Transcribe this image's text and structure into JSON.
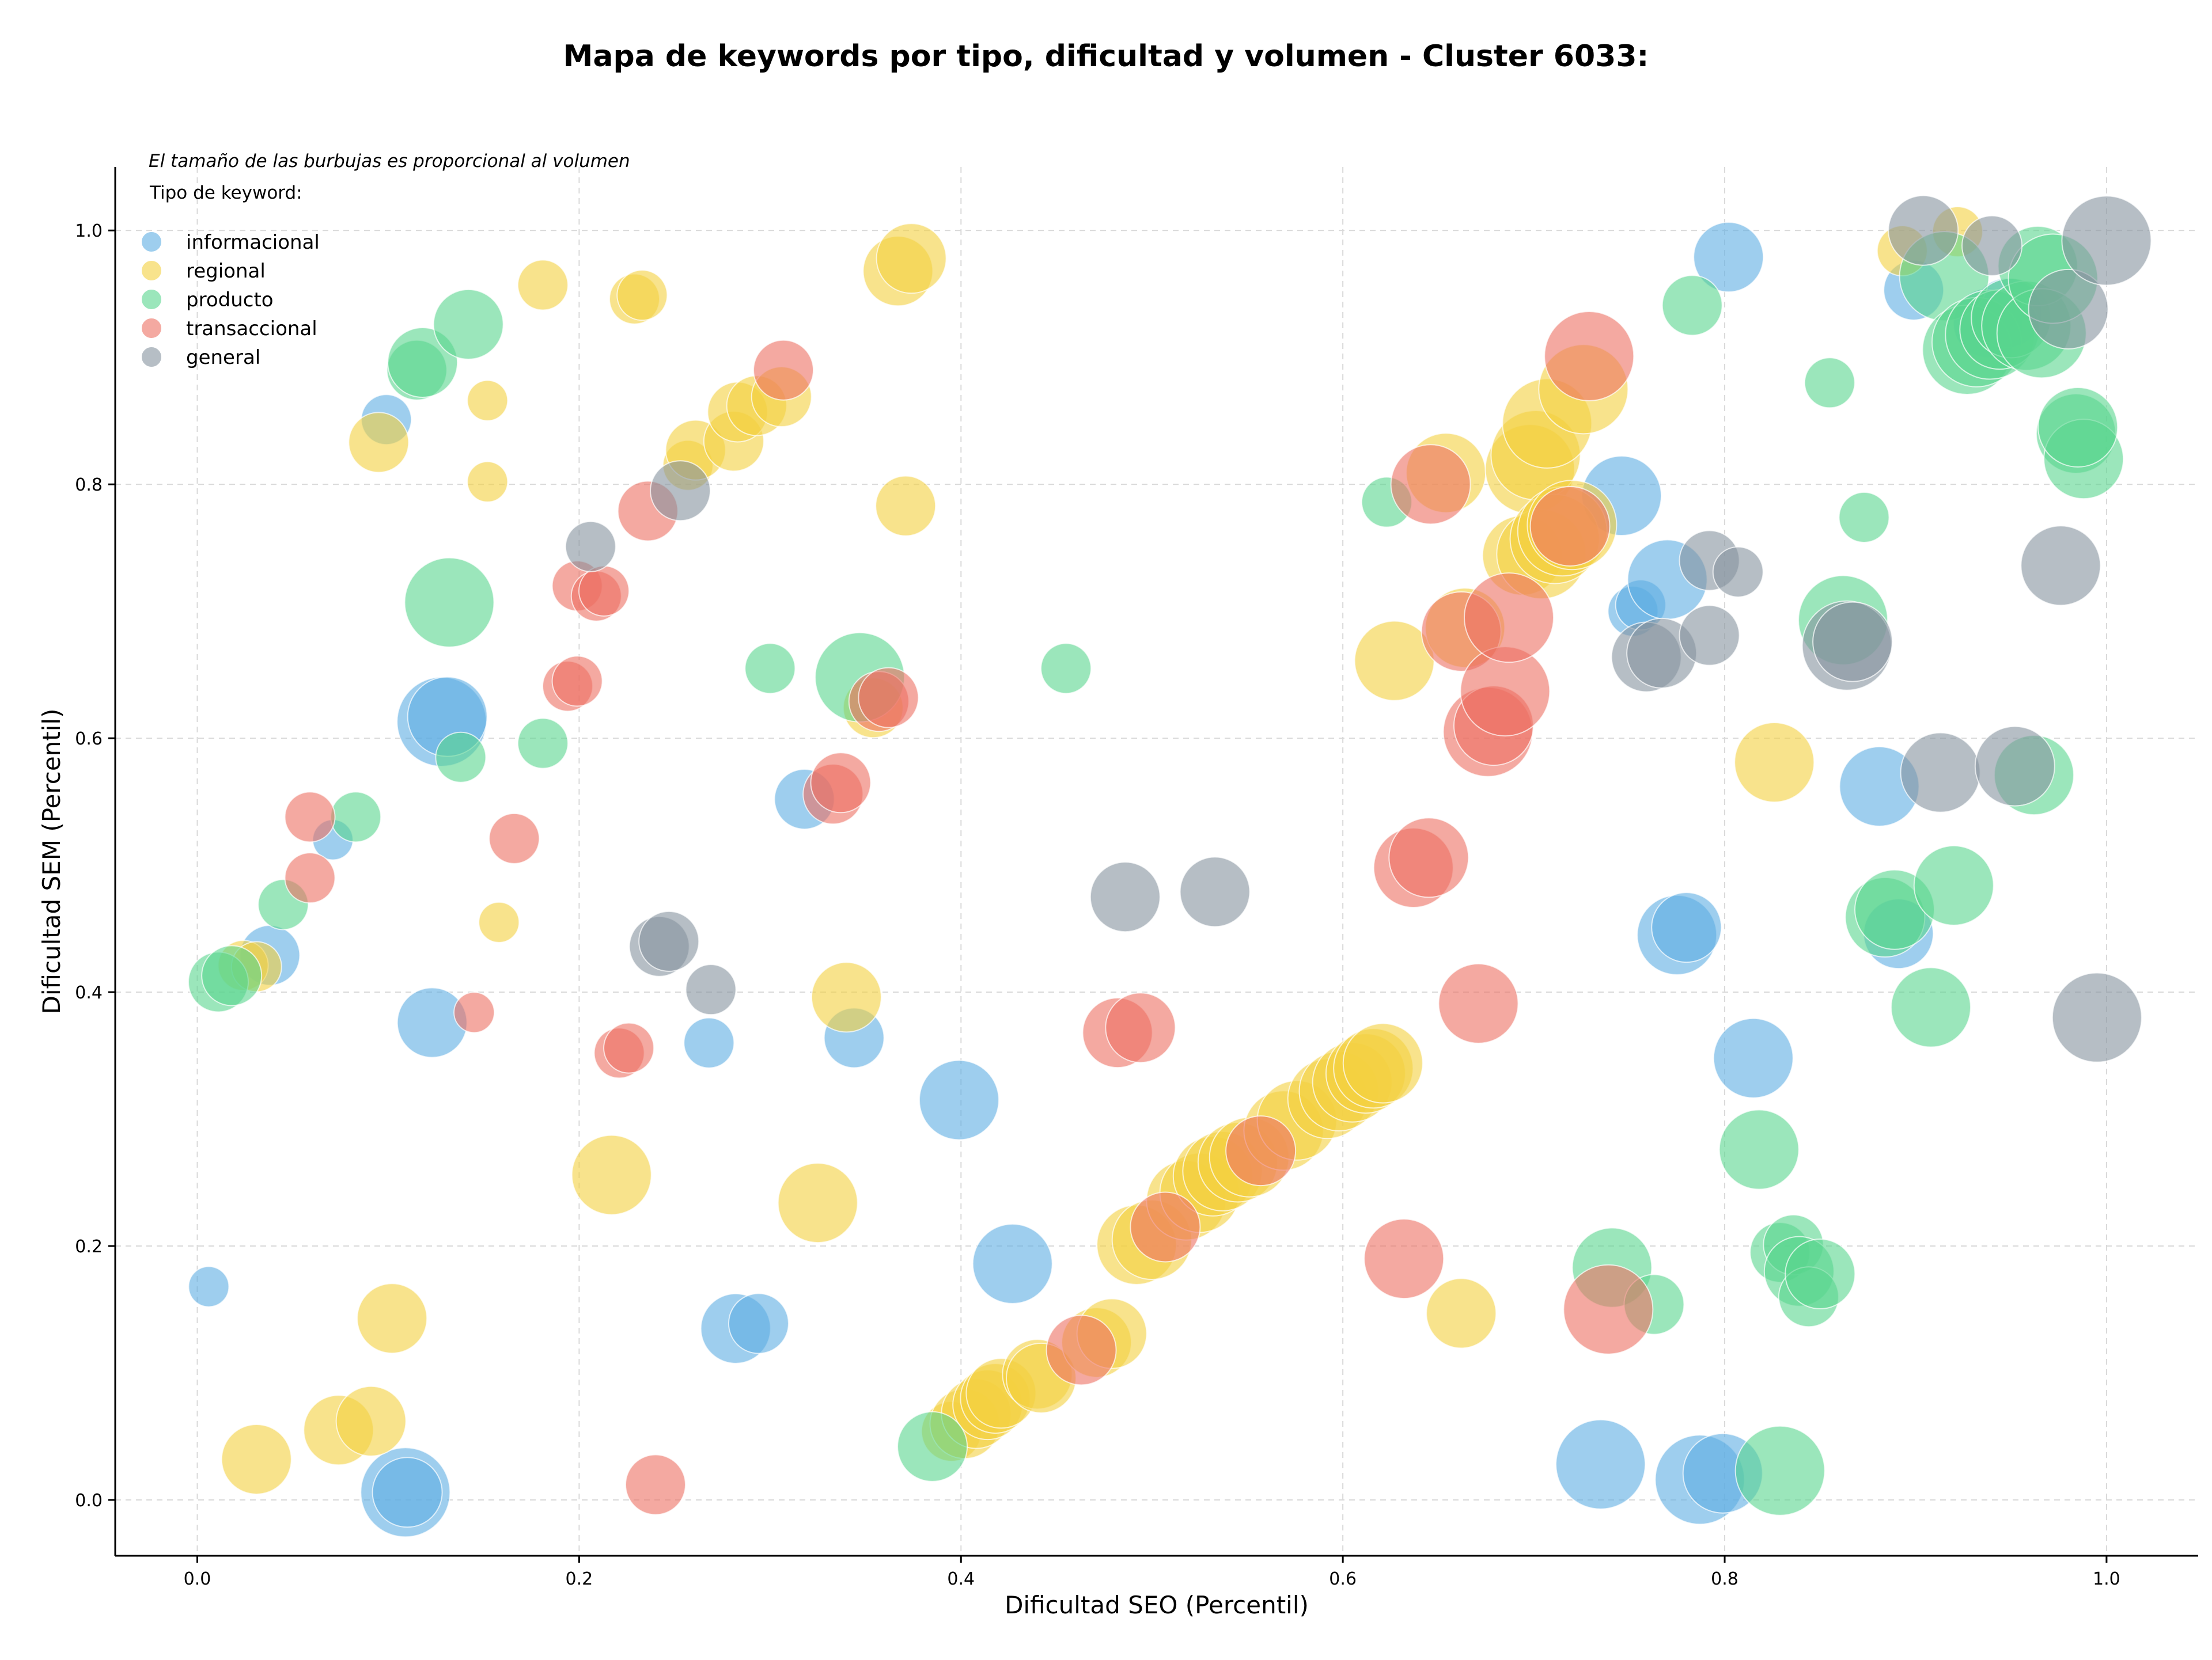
{
  "chart_data": {
    "type": "scatter",
    "title": "Mapa de keywords por tipo, dificultad y volumen - Cluster 6033:",
    "subtitle": "El tamaño de las burbujas es proporcional al volumen",
    "xlabel": "Dificultad SEO (Percentil)",
    "ylabel": "Dificultad SEM (Percentil)",
    "xlim": [
      -0.043,
      1.048
    ],
    "ylim": [
      -0.044,
      1.05
    ],
    "xticks": [
      "0.0",
      "0.2",
      "0.4",
      "0.6",
      "0.8",
      "1.0"
    ],
    "yticks": [
      "0.0",
      "0.2",
      "0.4",
      "0.6",
      "0.8",
      "1.0"
    ],
    "grid": true,
    "legend": {
      "title": "Tipo de keyword:",
      "position": "top-left"
    },
    "size_encoding": "volumen (relative 1-10)",
    "series": [
      {
        "name": "informacional",
        "color": "#5DADE2",
        "points": [
          [
            0.006,
            0.168,
            2
          ],
          [
            0.038,
            0.429,
            4
          ],
          [
            0.071,
            0.52,
            2
          ],
          [
            0.099,
            0.851,
            3
          ],
          [
            0.109,
            0.006,
            7
          ],
          [
            0.11,
            0.006,
            5
          ],
          [
            0.123,
            0.376,
            5
          ],
          [
            0.128,
            0.613,
            7
          ],
          [
            0.131,
            0.617,
            6
          ],
          [
            0.268,
            0.36,
            3
          ],
          [
            0.282,
            0.135,
            5
          ],
          [
            0.294,
            0.139,
            4
          ],
          [
            0.318,
            0.552,
            4
          ],
          [
            0.344,
            0.364,
            4
          ],
          [
            0.399,
            0.315,
            6
          ],
          [
            0.427,
            0.186,
            6
          ],
          [
            0.735,
            0.028,
            7
          ],
          [
            0.746,
            0.791,
            6
          ],
          [
            0.752,
            0.7,
            3
          ],
          [
            0.756,
            0.705,
            3
          ],
          [
            0.77,
            0.725,
            6
          ],
          [
            0.775,
            0.445,
            6
          ],
          [
            0.78,
            0.451,
            5
          ],
          [
            0.787,
            0.016,
            7
          ],
          [
            0.799,
            0.021,
            6
          ],
          [
            0.802,
            0.979,
            5
          ],
          [
            0.815,
            0.348,
            6
          ],
          [
            0.881,
            0.562,
            6
          ],
          [
            0.891,
            0.446,
            5
          ],
          [
            0.899,
            0.953,
            4
          ],
          [
            0.938,
            0.927,
            5
          ],
          [
            0.948,
            0.935,
            5
          ]
        ]
      },
      {
        "name": "regional",
        "color": "#F4D03F",
        "points": [
          [
            0.024,
            0.421,
            3
          ],
          [
            0.031,
            0.42,
            3
          ],
          [
            0.031,
            0.032,
            5
          ],
          [
            0.074,
            0.055,
            5
          ],
          [
            0.091,
            0.062,
            5
          ],
          [
            0.095,
            0.833,
            4
          ],
          [
            0.102,
            0.143,
            5
          ],
          [
            0.152,
            0.866,
            2
          ],
          [
            0.152,
            0.802,
            2
          ],
          [
            0.158,
            0.455,
            2
          ],
          [
            0.181,
            0.957,
            3
          ],
          [
            0.217,
            0.256,
            6
          ],
          [
            0.229,
            0.946,
            3
          ],
          [
            0.233,
            0.949,
            3
          ],
          [
            0.257,
            0.815,
            3
          ],
          [
            0.261,
            0.827,
            4
          ],
          [
            0.281,
            0.834,
            4
          ],
          [
            0.283,
            0.857,
            4
          ],
          [
            0.293,
            0.862,
            4
          ],
          [
            0.306,
            0.869,
            4
          ],
          [
            0.325,
            0.234,
            6
          ],
          [
            0.34,
            0.396,
            5
          ],
          [
            0.354,
            0.624,
            4
          ],
          [
            0.367,
            0.968,
            5
          ],
          [
            0.371,
            0.783,
            4
          ],
          [
            0.374,
            0.978,
            5
          ],
          [
            0.395,
            0.054,
            4
          ],
          [
            0.402,
            0.06,
            5
          ],
          [
            0.408,
            0.068,
            5
          ],
          [
            0.414,
            0.075,
            5
          ],
          [
            0.418,
            0.08,
            5
          ],
          [
            0.421,
            0.084,
            5
          ],
          [
            0.44,
            0.099,
            5
          ],
          [
            0.442,
            0.096,
            5
          ],
          [
            0.471,
            0.124,
            5
          ],
          [
            0.479,
            0.131,
            5
          ],
          [
            0.492,
            0.201,
            6
          ],
          [
            0.5,
            0.205,
            6
          ],
          [
            0.518,
            0.236,
            6
          ],
          [
            0.525,
            0.242,
            6
          ],
          [
            0.532,
            0.255,
            6
          ],
          [
            0.537,
            0.259,
            6
          ],
          [
            0.545,
            0.266,
            6
          ],
          [
            0.551,
            0.27,
            6
          ],
          [
            0.569,
            0.291,
            6
          ],
          [
            0.576,
            0.299,
            6
          ],
          [
            0.592,
            0.316,
            6
          ],
          [
            0.598,
            0.322,
            6
          ],
          [
            0.605,
            0.329,
            6
          ],
          [
            0.612,
            0.336,
            6
          ],
          [
            0.616,
            0.34,
            6
          ],
          [
            0.621,
            0.344,
            6
          ],
          [
            0.627,
            0.661,
            6
          ],
          [
            0.654,
            0.809,
            6
          ],
          [
            0.664,
            0.687,
            6
          ],
          [
            0.662,
            0.147,
            5
          ],
          [
            0.694,
            0.744,
            6
          ],
          [
            0.698,
            0.812,
            7
          ],
          [
            0.701,
            0.823,
            7
          ],
          [
            0.704,
            0.745,
            7
          ],
          [
            0.707,
            0.848,
            7
          ],
          [
            0.711,
            0.757,
            7
          ],
          [
            0.715,
            0.763,
            7
          ],
          [
            0.72,
            0.768,
            7
          ],
          [
            0.726,
            0.875,
            7
          ],
          [
            0.826,
            0.581,
            6
          ],
          [
            0.893,
            0.984,
            3
          ],
          [
            0.922,
            0.999,
            3
          ]
        ]
      },
      {
        "name": "producto",
        "color": "#58D68D",
        "points": [
          [
            0.011,
            0.408,
            4
          ],
          [
            0.018,
            0.413,
            4
          ],
          [
            0.045,
            0.469,
            3
          ],
          [
            0.083,
            0.538,
            3
          ],
          [
            0.115,
            0.89,
            4
          ],
          [
            0.118,
            0.896,
            5
          ],
          [
            0.132,
            0.707,
            7
          ],
          [
            0.138,
            0.585,
            3
          ],
          [
            0.142,
            0.926,
            5
          ],
          [
            0.181,
            0.596,
            3
          ],
          [
            0.3,
            0.655,
            3
          ],
          [
            0.347,
            0.648,
            7
          ],
          [
            0.385,
            0.042,
            5
          ],
          [
            0.455,
            0.655,
            3
          ],
          [
            0.623,
            0.786,
            3
          ],
          [
            0.783,
            0.941,
            4
          ],
          [
            0.741,
            0.183,
            6
          ],
          [
            0.763,
            0.154,
            4
          ],
          [
            0.818,
            0.276,
            6
          ],
          [
            0.829,
            0.023,
            7
          ],
          [
            0.829,
            0.195,
            4
          ],
          [
            0.836,
            0.201,
            4
          ],
          [
            0.839,
            0.18,
            5
          ],
          [
            0.844,
            0.16,
            4
          ],
          [
            0.85,
            0.178,
            5
          ],
          [
            0.855,
            0.88,
            3
          ],
          [
            0.862,
            0.693,
            7
          ],
          [
            0.873,
            0.774,
            3
          ],
          [
            0.884,
            0.459,
            6
          ],
          [
            0.889,
            0.465,
            6
          ],
          [
            0.908,
            0.388,
            6
          ],
          [
            0.915,
            0.964,
            7
          ],
          [
            0.92,
            0.484,
            6
          ],
          [
            0.927,
            0.906,
            7
          ],
          [
            0.932,
            0.912,
            7
          ],
          [
            0.939,
            0.918,
            7
          ],
          [
            0.944,
            0.922,
            6
          ],
          [
            0.95,
            0.931,
            6
          ],
          [
            0.958,
            0.925,
            7
          ],
          [
            0.962,
            0.571,
            6
          ],
          [
            0.964,
            0.972,
            6
          ],
          [
            0.966,
            0.919,
            7
          ],
          [
            0.972,
            0.962,
            7
          ],
          [
            0.984,
            0.84,
            6
          ],
          [
            0.988,
            0.82,
            6
          ],
          [
            0.985,
            0.845,
            6
          ]
        ]
      },
      {
        "name": "transaccional",
        "color": "#EC7063",
        "points": [
          [
            0.059,
            0.538,
            3
          ],
          [
            0.059,
            0.49,
            3
          ],
          [
            0.145,
            0.384,
            2
          ],
          [
            0.166,
            0.521,
            3
          ],
          [
            0.194,
            0.641,
            3
          ],
          [
            0.199,
            0.645,
            3
          ],
          [
            0.199,
            0.72,
            3
          ],
          [
            0.209,
            0.712,
            3
          ],
          [
            0.213,
            0.716,
            3
          ],
          [
            0.221,
            0.352,
            3
          ],
          [
            0.226,
            0.356,
            3
          ],
          [
            0.236,
            0.779,
            4
          ],
          [
            0.24,
            0.012,
            4
          ],
          [
            0.307,
            0.89,
            4
          ],
          [
            0.333,
            0.556,
            4
          ],
          [
            0.337,
            0.565,
            4
          ],
          [
            0.357,
            0.629,
            4
          ],
          [
            0.362,
            0.632,
            4
          ],
          [
            0.463,
            0.118,
            5
          ],
          [
            0.482,
            0.368,
            5
          ],
          [
            0.494,
            0.372,
            5
          ],
          [
            0.507,
            0.215,
            5
          ],
          [
            0.557,
            0.275,
            5
          ],
          [
            0.632,
            0.19,
            6
          ],
          [
            0.637,
            0.498,
            6
          ],
          [
            0.645,
            0.506,
            6
          ],
          [
            0.646,
            0.8,
            6
          ],
          [
            0.662,
            0.684,
            6
          ],
          [
            0.671,
            0.391,
            6
          ],
          [
            0.676,
            0.605,
            7
          ],
          [
            0.679,
            0.61,
            6
          ],
          [
            0.685,
            0.637,
            7
          ],
          [
            0.687,
            0.695,
            7
          ],
          [
            0.719,
            0.767,
            6
          ],
          [
            0.729,
            0.901,
            7
          ],
          [
            0.739,
            0.15,
            7
          ]
        ]
      },
      {
        "name": "general",
        "color": "#85929E",
        "points": [
          [
            0.206,
            0.751,
            3
          ],
          [
            0.242,
            0.436,
            4
          ],
          [
            0.247,
            0.44,
            4
          ],
          [
            0.253,
            0.795,
            4
          ],
          [
            0.269,
            0.402,
            3
          ],
          [
            0.486,
            0.475,
            5
          ],
          [
            0.533,
            0.479,
            5
          ],
          [
            0.759,
            0.664,
            5
          ],
          [
            0.767,
            0.667,
            5
          ],
          [
            0.792,
            0.74,
            4
          ],
          [
            0.792,
            0.681,
            4
          ],
          [
            0.807,
            0.731,
            3
          ],
          [
            0.864,
            0.673,
            7
          ],
          [
            0.867,
            0.676,
            6
          ],
          [
            0.904,
            1.0,
            5
          ],
          [
            0.913,
            0.573,
            6
          ],
          [
            0.94,
            0.988,
            4
          ],
          [
            0.952,
            0.578,
            6
          ],
          [
            0.976,
            0.736,
            6
          ],
          [
            0.98,
            0.938,
            6
          ],
          [
            0.995,
            0.38,
            7
          ],
          [
            1.0,
            0.992,
            7
          ]
        ]
      }
    ]
  }
}
